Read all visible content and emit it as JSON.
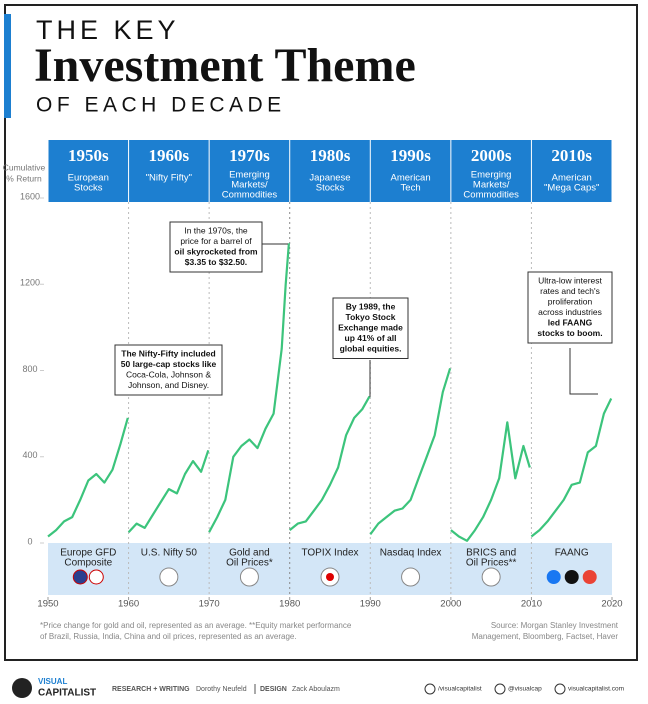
{
  "header": {
    "line1": "THE KEY",
    "line2": "Investment Theme",
    "line3": "OF EACH DECADE"
  },
  "chart_data": {
    "type": "line",
    "y_label_lines": [
      "Cumulative",
      "% Return"
    ],
    "xlim": [
      1950,
      2020
    ],
    "xticks": [
      1950,
      1960,
      1970,
      1980,
      1990,
      2000,
      2010,
      2020
    ],
    "ylim": [
      0,
      1600
    ],
    "yticks": [
      0,
      400,
      800,
      1200,
      1600
    ],
    "color": "#3cc47c",
    "decades": [
      {
        "decade": "1950s",
        "theme": [
          "European",
          "Stocks"
        ],
        "index": [
          "Europe GFD",
          "Composite"
        ]
      },
      {
        "decade": "1960s",
        "theme": [
          "\"Nifty Fifty\""
        ],
        "index": [
          "U.S. Nifty 50"
        ]
      },
      {
        "decade": "1970s",
        "theme": [
          "Emerging",
          "Markets/",
          "Commodities"
        ],
        "index": [
          "Gold and",
          "Oil Prices*"
        ]
      },
      {
        "decade": "1980s",
        "theme": [
          "Japanese",
          "Stocks"
        ],
        "index": [
          "TOPIX Index"
        ]
      },
      {
        "decade": "1990s",
        "theme": [
          "American",
          "Tech"
        ],
        "index": [
          "Nasdaq Index"
        ]
      },
      {
        "decade": "2000s",
        "theme": [
          "Emerging",
          "Markets/",
          "Commodities"
        ],
        "index": [
          "BRICS and",
          "Oil Prices**"
        ]
      },
      {
        "decade": "2010s",
        "theme": [
          "American",
          "\"Mega Caps\""
        ],
        "index": [
          "FAANG"
        ]
      }
    ],
    "series": [
      {
        "x": [
          1950,
          1951,
          1952,
          1953,
          1954,
          1955,
          1956,
          1957,
          1958,
          1959,
          1959.9
        ],
        "values": [
          30,
          60,
          100,
          120,
          200,
          290,
          320,
          280,
          340,
          460,
          580
        ]
      },
      {
        "x": [
          1960,
          1961,
          1962,
          1963,
          1964,
          1965,
          1966,
          1967,
          1968,
          1969,
          1969.9
        ],
        "values": [
          50,
          90,
          70,
          130,
          190,
          250,
          230,
          320,
          380,
          330,
          430
        ]
      },
      {
        "x": [
          1970,
          1971,
          1972,
          1973,
          1974,
          1975,
          1976,
          1977,
          1978,
          1979,
          1979.5,
          1979.9
        ],
        "values": [
          50,
          120,
          200,
          400,
          450,
          480,
          440,
          530,
          600,
          900,
          1200,
          1390
        ]
      },
      {
        "x": [
          1980,
          1981,
          1982,
          1983,
          1984,
          1985,
          1986,
          1987,
          1988,
          1989,
          1989.9
        ],
        "values": [
          60,
          90,
          100,
          150,
          200,
          270,
          350,
          500,
          580,
          620,
          680
        ]
      },
      {
        "x": [
          1990,
          1991,
          1992,
          1993,
          1994,
          1995,
          1996,
          1997,
          1998,
          1999,
          1999.9
        ],
        "values": [
          40,
          90,
          120,
          150,
          160,
          200,
          300,
          400,
          500,
          700,
          810
        ]
      },
      {
        "x": [
          2000,
          2001,
          2002,
          2003,
          2004,
          2005,
          2006,
          2007,
          2008,
          2009,
          2009.8
        ],
        "values": [
          60,
          30,
          10,
          60,
          120,
          200,
          300,
          560,
          300,
          450,
          350
        ]
      },
      {
        "x": [
          2010,
          2011,
          2012,
          2013,
          2014,
          2015,
          2016,
          2017,
          2018,
          2019,
          2019.9
        ],
        "values": [
          30,
          60,
          100,
          150,
          200,
          270,
          280,
          420,
          450,
          600,
          670
        ]
      }
    ],
    "annotations": [
      {
        "lines": [
          "The Nifty-Fifty included",
          "50 large-cap stocks like",
          "Coca-Cola, Johnson &",
          "Johnson, and Disney."
        ],
        "bold": [
          true,
          true,
          false,
          false
        ]
      },
      {
        "lines": [
          "In the 1970s, the",
          "price for a barrel of",
          "oil skyrocketed from",
          "$3.35 to $32.50."
        ],
        "bold": [
          false,
          false,
          true,
          true
        ]
      },
      {
        "lines": [
          "By 1989, the",
          "Tokyo Stock",
          "Exchange made",
          "up 41% of all",
          "global equities."
        ],
        "bold": [
          true,
          true,
          true,
          true,
          true
        ]
      },
      {
        "lines": [
          "Ultra-low interest",
          "rates and tech's",
          "proliferation",
          "across industries",
          "led FAANG",
          "stocks to boom."
        ],
        "bold": [
          false,
          false,
          false,
          false,
          true,
          true
        ]
      }
    ],
    "footnote": [
      "*Price change for gold and oil, represented as an average. **Equity market performance",
      "of Brazil, Russia, India, China and oil prices, represented as an average."
    ],
    "source": [
      "Source: Morgan Stanley Investment",
      "Management, Bloomberg, Factset, Haver"
    ]
  },
  "footer": {
    "brand": [
      "VISUAL",
      "CAPITALIST"
    ],
    "research_label": "RESEARCH + WRITING",
    "research_name": "Dorothy Neufeld",
    "design_label": "DESIGN",
    "design_name": "Zack Aboulazm",
    "social": [
      "/visualcapitalist",
      "@visualcap",
      "visualcapitalist.com"
    ]
  }
}
